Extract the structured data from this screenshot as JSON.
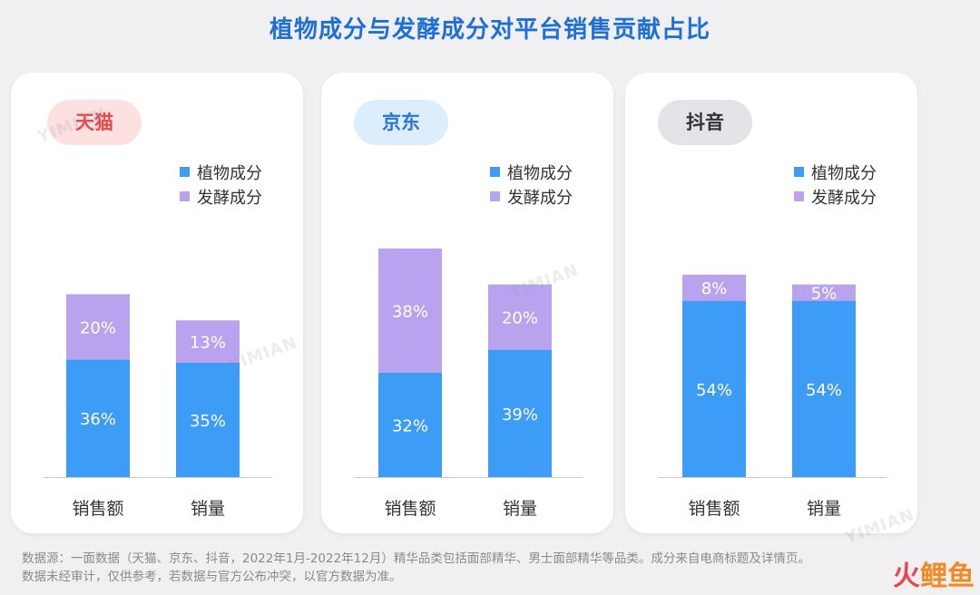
{
  "title": "植物成分与发酵成分对平台销售贡献占比",
  "legend": {
    "plant": "植物成分",
    "ferment": "发酵成分"
  },
  "colors": {
    "plant": "#3d9cf5",
    "ferment": "#b9a3ef",
    "title": "#1f6fd6",
    "badge_tmall_bg": "#fde0e0",
    "badge_tmall_fg": "#e8474d",
    "badge_jd_bg": "#dcedfb",
    "badge_jd_fg": "#2b73d6",
    "badge_douyin_bg": "#e3e4e8",
    "badge_douyin_fg": "#333333"
  },
  "chart_data": [
    {
      "type": "bar",
      "stacked": true,
      "platform": "天猫",
      "categories": [
        "销售额",
        "销量"
      ],
      "series": [
        {
          "name": "植物成分",
          "values": [
            36,
            35
          ],
          "labels": [
            "36%",
            "35%"
          ]
        },
        {
          "name": "发酵成分",
          "values": [
            20,
            13
          ],
          "labels": [
            "20%",
            "13%"
          ]
        }
      ],
      "ylim": [
        0,
        100
      ]
    },
    {
      "type": "bar",
      "stacked": true,
      "platform": "京东",
      "categories": [
        "销售额",
        "销量"
      ],
      "series": [
        {
          "name": "植物成分",
          "values": [
            32,
            39
          ],
          "labels": [
            "32%",
            "39%"
          ]
        },
        {
          "name": "发酵成分",
          "values": [
            38,
            20
          ],
          "labels": [
            "38%",
            "20%"
          ]
        }
      ],
      "ylim": [
        0,
        100
      ]
    },
    {
      "type": "bar",
      "stacked": true,
      "platform": "抖音",
      "categories": [
        "销售额",
        "销量"
      ],
      "series": [
        {
          "name": "植物成分",
          "values": [
            54,
            54
          ],
          "labels": [
            "54%",
            "54%"
          ]
        },
        {
          "name": "发酵成分",
          "values": [
            8,
            5
          ],
          "labels": [
            "8%",
            "5%"
          ]
        }
      ],
      "ylim": [
        0,
        100
      ]
    }
  ],
  "watermark": "YIMIAN",
  "footer": {
    "line1": "数据源：一面数据（天猫、京东、抖音，2022年1月-2022年12月）精华品类包括面部精华、男士面部精华等品类。成分来自电商标题及详情页。",
    "line2": "数据未经审计，仅供参考，若数据与官方公布冲突，以官方数据为准。"
  },
  "corner_logo": {
    "part1": "火",
    "part2": "鲤",
    "part3": "鱼"
  }
}
